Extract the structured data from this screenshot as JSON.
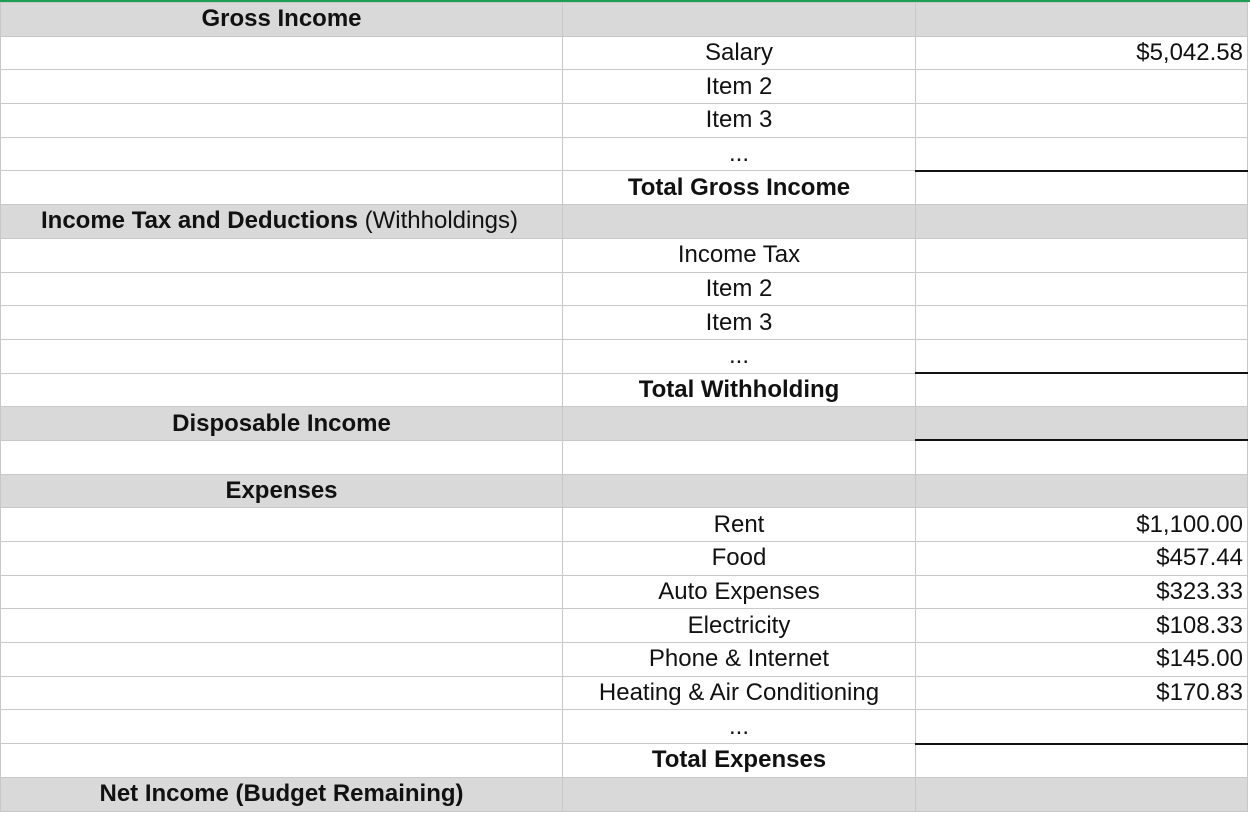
{
  "sections": {
    "gross_income": {
      "title": "Gross Income",
      "items": [
        {
          "label": "Salary",
          "amount": "$5,042.58"
        },
        {
          "label": "Item 2",
          "amount": ""
        },
        {
          "label": "Item 3",
          "amount": ""
        },
        {
          "label": "...",
          "amount": ""
        }
      ],
      "total_label": "Total Gross Income"
    },
    "withholdings": {
      "title": "Income Tax and Deductions",
      "title_note": "(Withholdings)",
      "items": [
        {
          "label": "Income Tax",
          "amount": ""
        },
        {
          "label": "Item 2",
          "amount": ""
        },
        {
          "label": "Item 3",
          "amount": ""
        },
        {
          "label": "...",
          "amount": ""
        }
      ],
      "total_label": "Total Withholding"
    },
    "disposable": {
      "title": "Disposable Income"
    },
    "expenses": {
      "title": "Expenses",
      "items": [
        {
          "label": "Rent",
          "amount": "$1,100.00"
        },
        {
          "label": "Food",
          "amount": "$457.44"
        },
        {
          "label": "Auto Expenses",
          "amount": "$323.33"
        },
        {
          "label": "Electricity",
          "amount": "$108.33"
        },
        {
          "label": "Phone & Internet",
          "amount": "$145.00"
        },
        {
          "label": "Heating & Air Conditioning",
          "amount": "$170.83"
        },
        {
          "label": "...",
          "amount": ""
        }
      ],
      "total_label": "Total Expenses"
    },
    "net_income": {
      "title": "Net Income (Budget Remaining)"
    }
  },
  "colors": {
    "section_fill": "#d9d9d9",
    "grid": "#c8c8c8",
    "top_border": "#1f9d55"
  }
}
